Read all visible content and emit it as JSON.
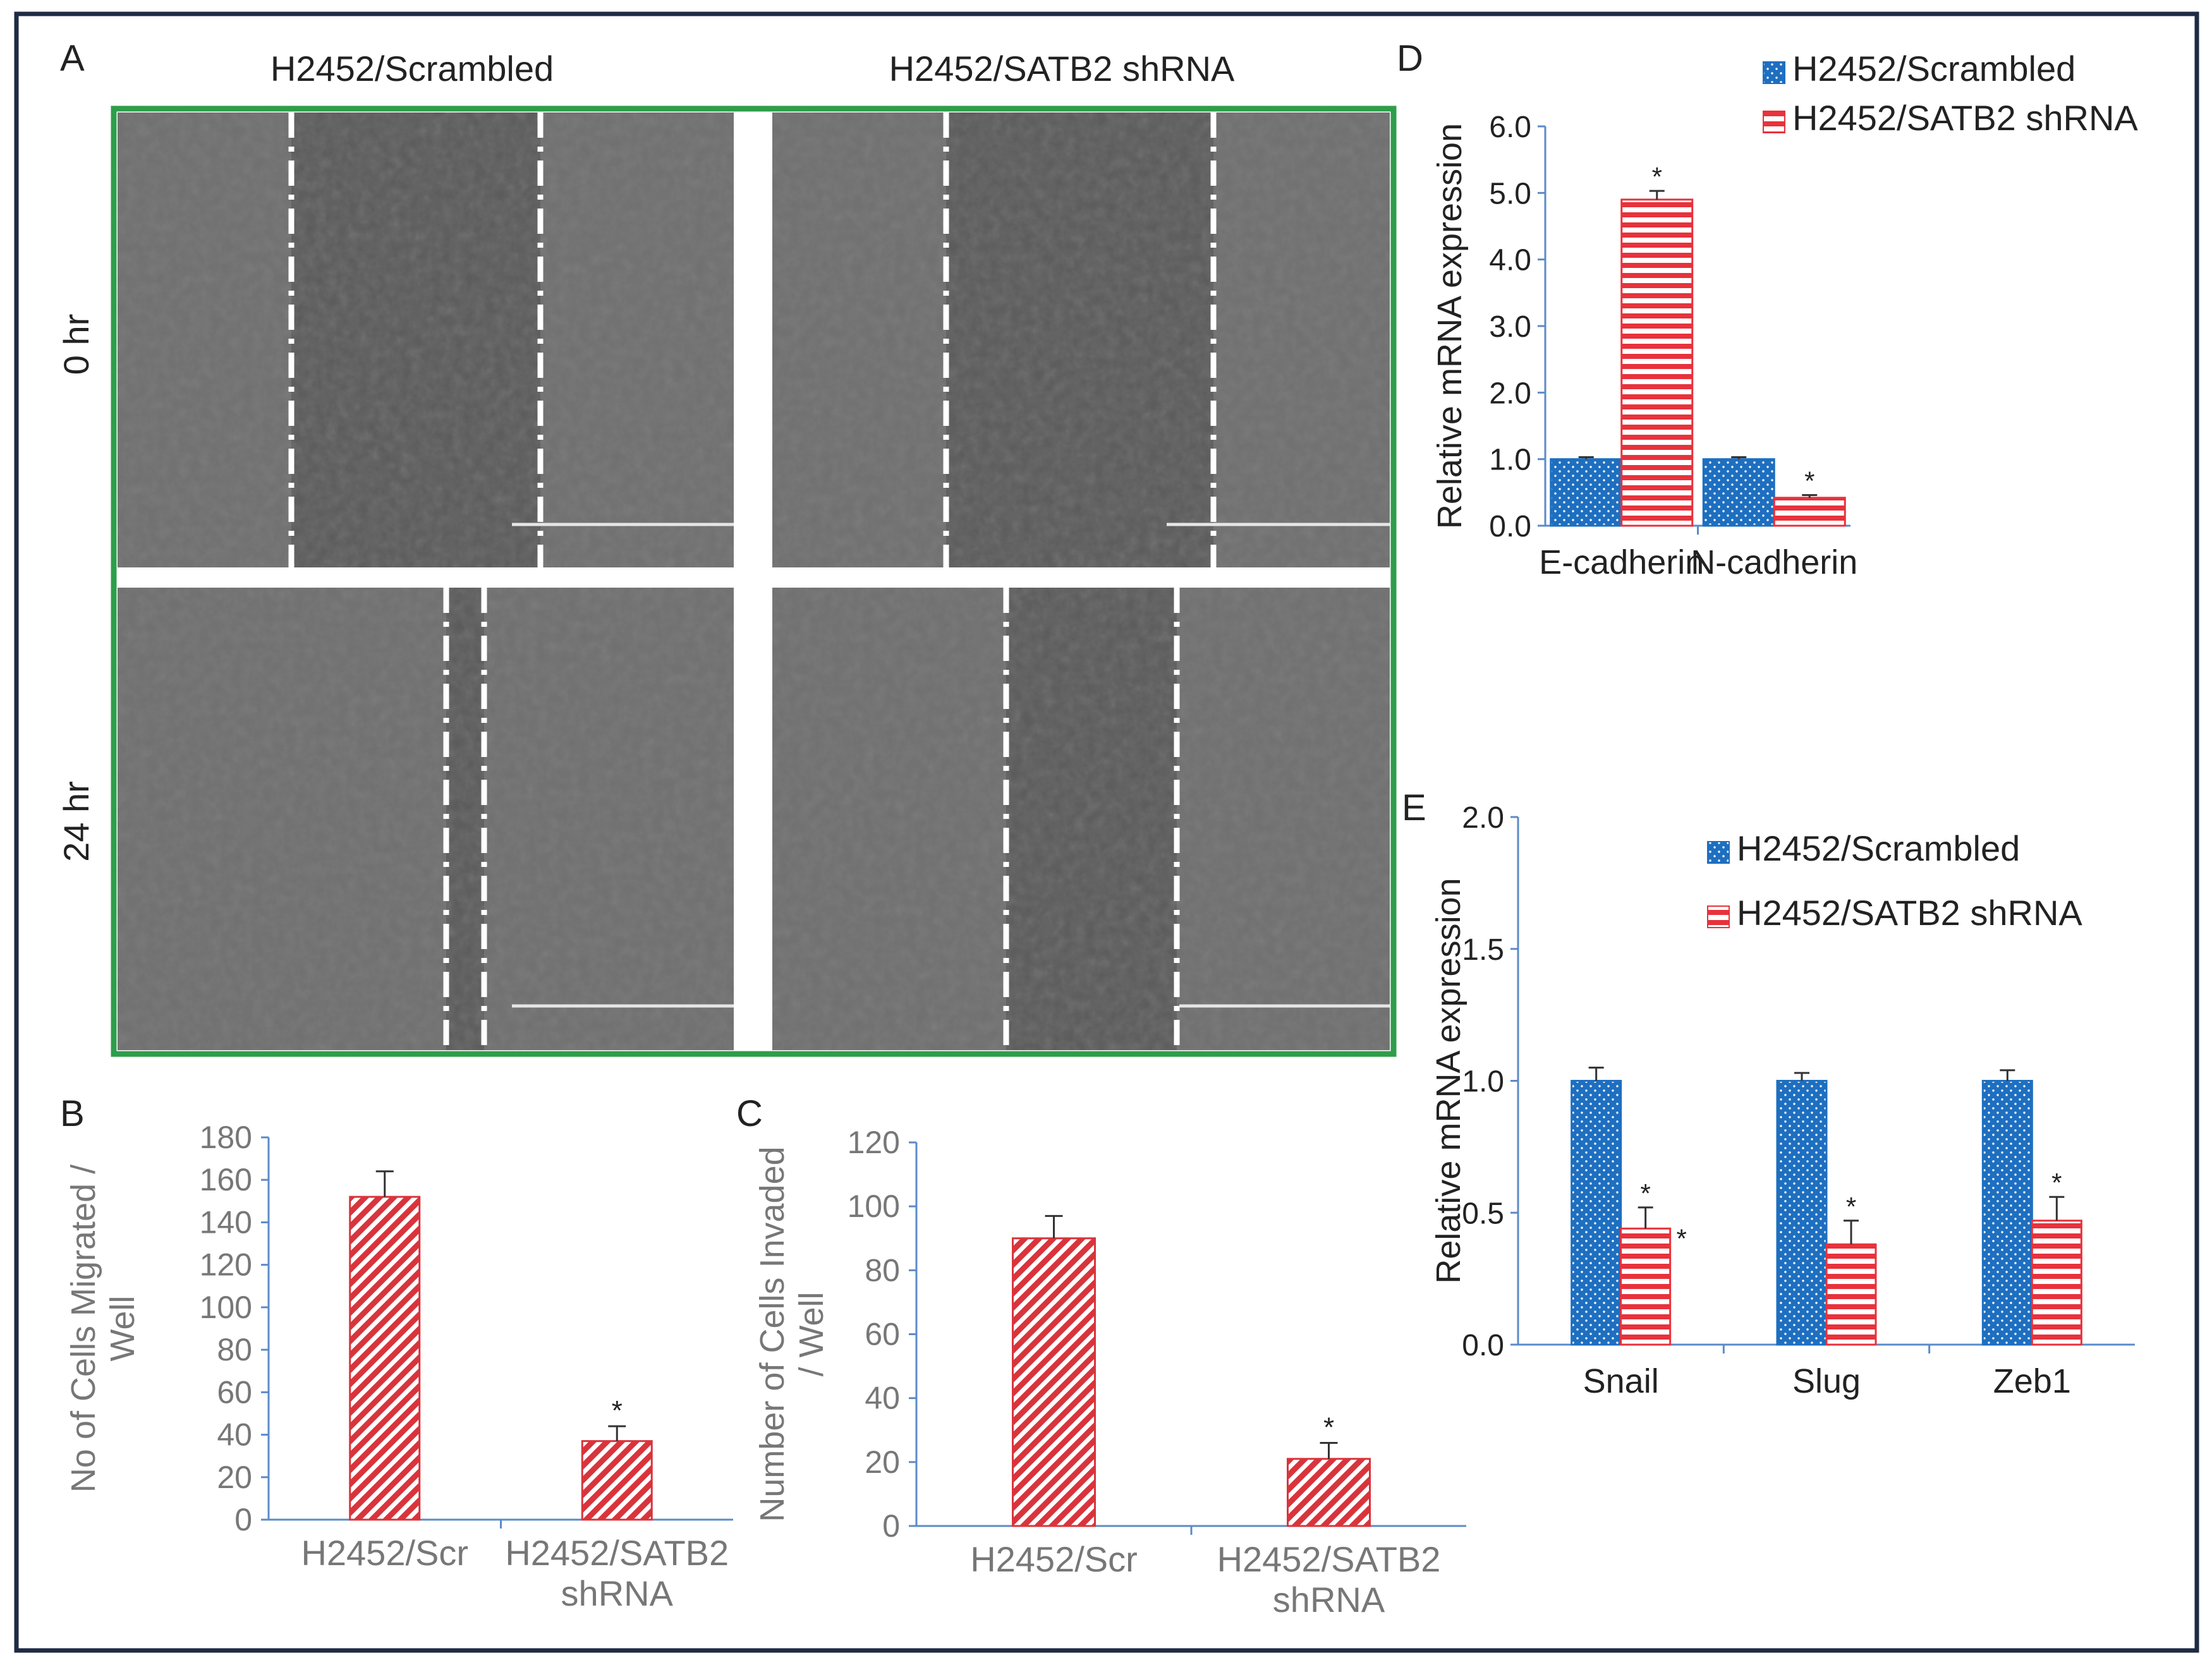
{
  "panels": {
    "a": {
      "label": "A",
      "col_titles": [
        "H2452/Scrambled",
        "H2452/SATB2 shRNA"
      ],
      "row_labels": [
        "0 hr",
        "24 hr"
      ]
    },
    "b": {
      "label": "B"
    },
    "c": {
      "label": "C"
    },
    "d": {
      "label": "D"
    },
    "e": {
      "label": "E"
    }
  },
  "chart_data": [
    {
      "id": "B",
      "type": "bar",
      "categories": [
        [
          "H2452/Scr"
        ],
        [
          "H2452/SATB2",
          "shRNA"
        ]
      ],
      "values": [
        152,
        37
      ],
      "errors": [
        12,
        7
      ],
      "significance": [
        "",
        "*"
      ],
      "ylabel": [
        "No of Cells Migrated /",
        "Well"
      ],
      "ylim": [
        0,
        180
      ],
      "yticks": [
        0,
        20,
        40,
        60,
        80,
        100,
        120,
        140,
        160,
        180
      ],
      "bar_color": "#d9343c"
    },
    {
      "id": "C",
      "type": "bar",
      "categories": [
        [
          "H2452/Scr"
        ],
        [
          "H2452/SATB2",
          "shRNA"
        ]
      ],
      "values": [
        90,
        21
      ],
      "errors": [
        7,
        5
      ],
      "significance": [
        "",
        "*"
      ],
      "ylabel": [
        "Number of Cells Invaded",
        "/ Well"
      ],
      "ylim": [
        0,
        120
      ],
      "yticks": [
        0,
        20,
        40,
        60,
        80,
        100,
        120
      ],
      "bar_color": "#d9343c"
    },
    {
      "id": "D",
      "type": "bar",
      "categories": [
        "E-cadherin",
        "N-cadherin"
      ],
      "series": [
        {
          "name": "H2452/Scrambled",
          "values": [
            1.0,
            1.0
          ],
          "errors": [
            0.03,
            0.03
          ],
          "significance": [
            "",
            ""
          ],
          "color": "#1e6fc0"
        },
        {
          "name": "H2452/SATB2 shRNA",
          "values": [
            4.9,
            0.42
          ],
          "errors": [
            0.13,
            0.04
          ],
          "significance": [
            "*",
            "*"
          ],
          "color": "#e8323c"
        }
      ],
      "ylabel": "Relative  mRNA  expression",
      "ylim": [
        0,
        6
      ],
      "yticks": [
        "0.0",
        "1.0",
        "2.0",
        "3.0",
        "4.0",
        "5.0",
        "6.0"
      ],
      "legend": "top-right"
    },
    {
      "id": "E",
      "type": "bar",
      "categories": [
        "Snail",
        "Slug",
        "Zeb1"
      ],
      "series": [
        {
          "name": "H2452/Scrambled",
          "values": [
            1.0,
            1.0,
            1.0
          ],
          "errors": [
            0.05,
            0.03,
            0.04
          ],
          "significance": [
            "",
            "",
            ""
          ],
          "color": "#1e6fc0"
        },
        {
          "name": "H2452/SATB2 shRNA",
          "values": [
            0.44,
            0.38,
            0.47
          ],
          "errors": [
            0.08,
            0.09,
            0.09
          ],
          "significance": [
            "* *",
            "*",
            "*"
          ],
          "color": "#e8323c"
        }
      ],
      "ylabel": "Relative  mRNA  expression",
      "ylim": [
        0,
        2
      ],
      "yticks": [
        "0.0",
        "0.5",
        "1.0",
        "1.5",
        "2.0"
      ],
      "legend": "top-right"
    }
  ]
}
